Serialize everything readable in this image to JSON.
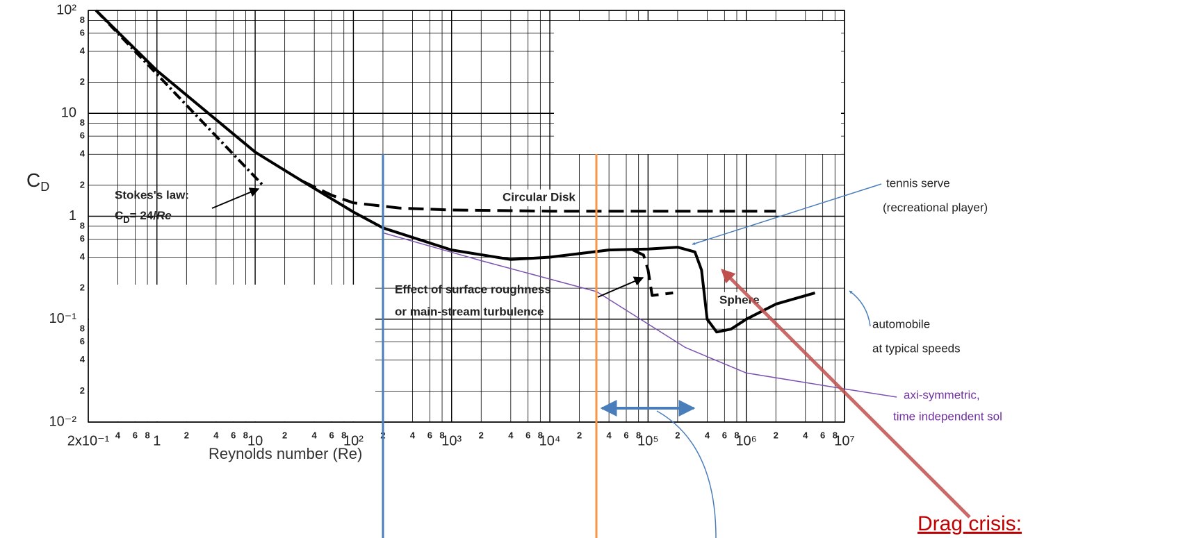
{
  "chart_data": {
    "type": "line",
    "xscale": "log",
    "yscale": "log",
    "grid": true,
    "xlabel": "Reynolds number (Re)",
    "ylabel": [
      "C",
      "D"
    ],
    "xlim": [
      0.2,
      10000000
    ],
    "ylim": [
      0.01,
      100
    ],
    "xticks": [
      {
        "value": 0.2,
        "label": "2x10⁻¹"
      },
      {
        "value": 0.4,
        "label": "4"
      },
      {
        "value": 0.6,
        "label": "6"
      },
      {
        "value": 0.8,
        "label": "8"
      },
      1,
      2,
      4,
      6,
      8,
      10,
      {
        "value": 20,
        "label": "2"
      },
      {
        "value": 40,
        "label": "4"
      },
      {
        "value": 60,
        "label": "6"
      },
      {
        "value": 80,
        "label": "8"
      },
      {
        "value": 100,
        "label": "10²"
      },
      {
        "value": 200,
        "label": "2"
      },
      {
        "value": 400,
        "label": "4"
      },
      {
        "value": 600,
        "label": "6"
      },
      {
        "value": 800,
        "label": "8"
      },
      {
        "value": 1000,
        "label": "10³"
      },
      {
        "value": 2000,
        "label": "2"
      },
      {
        "value": 4000,
        "label": "4"
      },
      {
        "value": 6000,
        "label": "6"
      },
      {
        "value": 8000,
        "label": "8"
      },
      {
        "value": 10000,
        "label": "10⁴"
      },
      {
        "value": 20000,
        "label": "2"
      },
      {
        "value": 40000,
        "label": "4"
      },
      {
        "value": 60000,
        "label": "6"
      },
      {
        "value": 80000,
        "label": "8"
      },
      {
        "value": 100000,
        "label": "10⁵"
      },
      {
        "value": 200000,
        "label": "2"
      },
      {
        "value": 400000,
        "label": "4"
      },
      {
        "value": 600000,
        "label": "6"
      },
      {
        "value": 800000,
        "label": "8"
      },
      {
        "value": 1000000,
        "label": "10⁶"
      },
      {
        "value": 2000000,
        "label": "2"
      },
      {
        "value": 4000000,
        "label": "4"
      },
      {
        "value": 6000000,
        "label": "6"
      },
      {
        "value": 8000000,
        "label": "8"
      },
      {
        "value": 10000000,
        "label": "10⁷"
      }
    ],
    "yticks": [
      {
        "value": 0.01,
        "label": "10⁻²"
      },
      {
        "value": 0.02,
        "label": "2"
      },
      {
        "value": 0.04,
        "label": "4"
      },
      {
        "value": 0.06,
        "label": "6"
      },
      {
        "value": 0.08,
        "label": "8"
      },
      {
        "value": 0.1,
        "label": "10⁻¹"
      },
      {
        "value": 0.2,
        "label": "2"
      },
      {
        "value": 0.4,
        "label": "4"
      },
      {
        "value": 0.6,
        "label": "6"
      },
      {
        "value": 0.8,
        "label": "8"
      },
      1,
      2,
      4,
      6,
      8,
      10,
      {
        "value": 20,
        "label": "2"
      },
      {
        "value": 40,
        "label": "4"
      },
      {
        "value": 60,
        "label": "6"
      },
      {
        "value": 80,
        "label": "8"
      },
      {
        "value": 100,
        "label": "10²"
      }
    ],
    "series": [
      {
        "name": "Sphere",
        "color": "#000000",
        "dash": "solid",
        "x": [
          0.24,
          1,
          10,
          30,
          100,
          200,
          1000,
          4000,
          10000,
          40000,
          100000,
          200000,
          300000,
          350000,
          400000,
          500000,
          700000,
          1000000,
          2000000,
          5000000
        ],
        "values": [
          100,
          26,
          4.2,
          2.2,
          1.1,
          0.77,
          0.47,
          0.38,
          0.4,
          0.47,
          0.48,
          0.5,
          0.45,
          0.3,
          0.1,
          0.075,
          0.08,
          0.1,
          0.14,
          0.18
        ]
      },
      {
        "name": "Circular Disk",
        "color": "#000000",
        "dash": "dashed",
        "x": [
          30,
          60,
          100,
          300,
          1000,
          10000,
          100000,
          2000000
        ],
        "values": [
          2.2,
          1.6,
          1.35,
          1.2,
          1.15,
          1.12,
          1.12,
          1.12
        ]
      },
      {
        "color": "#000000",
        "dash": "dashdot",
        "x": [
          0.24,
          12
        ],
        "values": [
          100,
          2
        ]
      },
      {
        "color": "#000000",
        "dash": "dashed",
        "x": [
          70000,
          90000,
          100000,
          110000,
          180000
        ],
        "values": [
          0.47,
          0.42,
          0.3,
          0.17,
          0.18
        ]
      },
      {
        "color": "#7b52ae",
        "dash": "solid",
        "width": 1.5,
        "x": [
          200,
          2000,
          30000,
          240000,
          1000000,
          10000000,
          34000000
        ],
        "values": [
          0.69,
          0.37,
          0.185,
          0.053,
          0.03,
          0.021,
          0.0175
        ]
      }
    ],
    "notes": {
      "stokes": [
        "Stokes's law:"
      ],
      "stokes_formula": [
        "C",
        "D",
        "= 24/",
        "Re"
      ],
      "roughness": [
        "Effect of surface roughness",
        "or main-stream turbulence"
      ],
      "tennis": [
        "tennis serve",
        "(recreational player)"
      ],
      "automobile": [
        "automobile",
        "at  typical speeds"
      ],
      "axisymmetric": [
        "axi-symmetric,",
        "time independent sol"
      ],
      "drag_crisis": "Drag crisis:"
    }
  }
}
